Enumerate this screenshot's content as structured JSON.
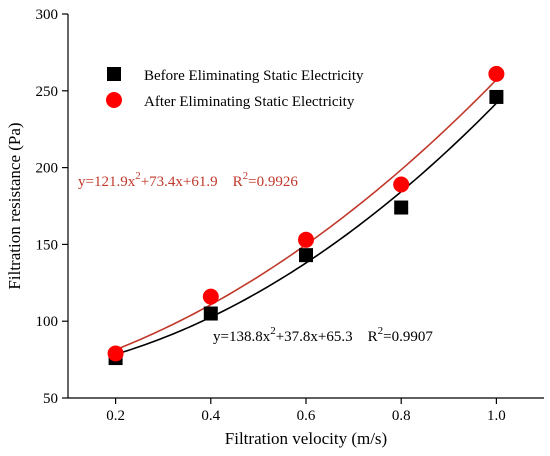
{
  "chart_data": {
    "type": "scatter",
    "xlabel": "Filtration velocity (m/s)",
    "ylabel": "Filtration resistance (Pa)",
    "xlim": [
      0.1,
      1.1
    ],
    "ylim": [
      50,
      300
    ],
    "x_ticks": [
      "0.2",
      "0.4",
      "0.6",
      "0.8",
      "1.0"
    ],
    "y_ticks": [
      "50",
      "100",
      "150",
      "200",
      "250",
      "300"
    ],
    "x": [
      0.2,
      0.4,
      0.6,
      0.8,
      1.0
    ],
    "legend_position": "top-right",
    "series": [
      {
        "name": "Before Eliminating Static Electricity",
        "marker": "square",
        "color": "#000000",
        "values": [
          76,
          105,
          143,
          174,
          246
        ],
        "fit": {
          "a": 138.8,
          "b": 37.8,
          "c": 65.3,
          "eq_parts": [
            "y=138.8x",
            "2",
            "+37.8x+65.3    R",
            "2",
            "=0.9907"
          ],
          "color": "#000000"
        }
      },
      {
        "name": "After Eliminating Static Electricity",
        "marker": "circle",
        "color": "#ff0000",
        "values": [
          79,
          116,
          153,
          189,
          261
        ],
        "fit": {
          "a": 121.9,
          "b": 73.4,
          "c": 61.9,
          "eq_parts": [
            "y=121.9x",
            "2",
            "+73.4x+61.9    R",
            "2",
            "=0.9926"
          ],
          "color": "#c0392b"
        }
      }
    ]
  }
}
